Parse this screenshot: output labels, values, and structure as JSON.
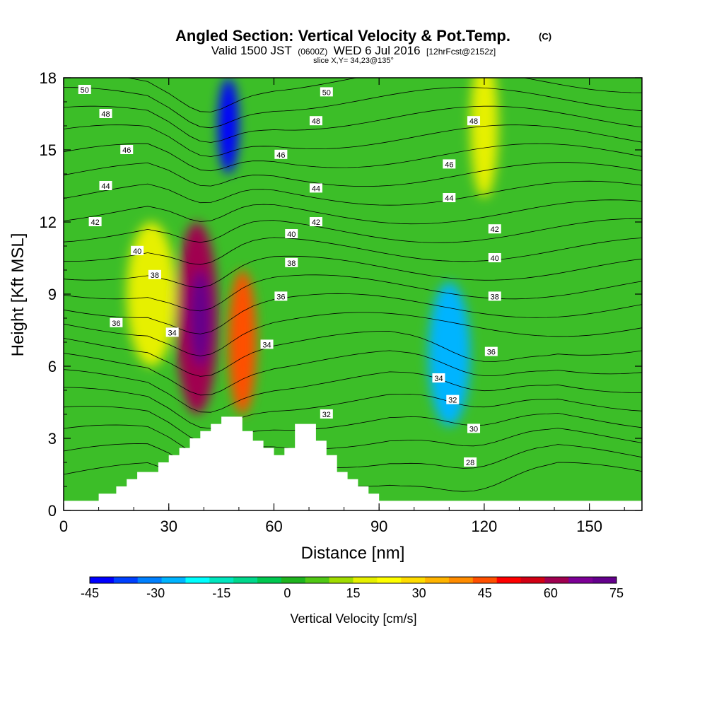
{
  "chart_data": {
    "type": "heatmap",
    "title": "Angled Section: Vertical Velocity & Pot.Temp.",
    "title_unit": "(C)",
    "subtitle": {
      "valid_a": "Valid 1500 JST",
      "zulu": "(0600Z)",
      "valid_b": "WED 6 Jul 2016",
      "fcst": "[12hrFcst@2152z]"
    },
    "slice_label": "slice X,Y= 34,23@135°",
    "xlabel": "Distance [nm]",
    "ylabel": "Height [Kft MSL]",
    "xlim": [
      0,
      165
    ],
    "ylim": [
      0,
      18
    ],
    "x_ticks": [
      "0",
      "30",
      "60",
      "90",
      "120",
      "150"
    ],
    "y_ticks": [
      "0",
      "3",
      "6",
      "9",
      "12",
      "15",
      "18"
    ],
    "colorbar": {
      "label": "Vertical Velocity [cm/s]",
      "min": -45,
      "max": 75,
      "ticks": [
        "-45",
        "-30",
        "-15",
        "0",
        "15",
        "30",
        "45",
        "60",
        "75"
      ],
      "colors": [
        "#0000ff",
        "#0040ff",
        "#0080ff",
        "#00b4ff",
        "#00ffff",
        "#00e6be",
        "#00d88c",
        "#00c850",
        "#1eb41e",
        "#50c814",
        "#a0dc00",
        "#e6f000",
        "#ffff00",
        "#ffdc00",
        "#ffb400",
        "#ff8c00",
        "#ff5000",
        "#ff0000",
        "#d20014",
        "#a00050",
        "#7d0096",
        "#64008c"
      ]
    },
    "terrain": [
      [
        0,
        0.4
      ],
      [
        10,
        0.4
      ],
      [
        10,
        0.7
      ],
      [
        15,
        0.7
      ],
      [
        15,
        1
      ],
      [
        18,
        1
      ],
      [
        18,
        1.3
      ],
      [
        21,
        1.3
      ],
      [
        21,
        1.6
      ],
      [
        27,
        1.6
      ],
      [
        27,
        2
      ],
      [
        30,
        2
      ],
      [
        30,
        2.3
      ],
      [
        33,
        2.3
      ],
      [
        33,
        2.6
      ],
      [
        36,
        2.6
      ],
      [
        36,
        3
      ],
      [
        39,
        3
      ],
      [
        39,
        3.3
      ],
      [
        42,
        3.3
      ],
      [
        42,
        3.6
      ],
      [
        45,
        3.6
      ],
      [
        45,
        3.9
      ],
      [
        51,
        3.9
      ],
      [
        51,
        3.3
      ],
      [
        54,
        3.3
      ],
      [
        54,
        2.9
      ],
      [
        57,
        2.9
      ],
      [
        57,
        2.6
      ],
      [
        60,
        2.6
      ],
      [
        60,
        2.3
      ],
      [
        63,
        2.3
      ],
      [
        63,
        2.6
      ],
      [
        66,
        2.6
      ],
      [
        66,
        3.6
      ],
      [
        72,
        3.6
      ],
      [
        72,
        2.9
      ],
      [
        75,
        2.9
      ],
      [
        75,
        2.3
      ],
      [
        78,
        2.3
      ],
      [
        78,
        1.6
      ],
      [
        81,
        1.6
      ],
      [
        81,
        1.3
      ],
      [
        84,
        1.3
      ],
      [
        84,
        1
      ],
      [
        87,
        1
      ],
      [
        87,
        0.7
      ],
      [
        90,
        0.7
      ],
      [
        90,
        0.4
      ],
      [
        165,
        0.4
      ]
    ],
    "features": [
      {
        "x": 39,
        "y": 8,
        "value": 75,
        "rx": 3,
        "ry": 2
      },
      {
        "x": 38,
        "y": 8,
        "value": 60,
        "rx": 6,
        "ry": 4
      },
      {
        "x": 51,
        "y": 7,
        "value": 45,
        "rx": 4,
        "ry": 3
      },
      {
        "x": 25,
        "y": 9,
        "value": 20,
        "rx": 7,
        "ry": 3
      },
      {
        "x": 47,
        "y": 16,
        "value": -40,
        "rx": 3,
        "ry": 2
      },
      {
        "x": 110,
        "y": 6.5,
        "value": -25,
        "rx": 6,
        "ry": 3
      },
      {
        "x": 120,
        "y": 16,
        "value": 18,
        "rx": 4,
        "ry": 3
      }
    ],
    "contour_labels": [
      {
        "text": "50",
        "x": 6,
        "y": 17.5
      },
      {
        "text": "48",
        "x": 12,
        "y": 16.5
      },
      {
        "text": "46",
        "x": 18,
        "y": 15
      },
      {
        "text": "44",
        "x": 12,
        "y": 13.5
      },
      {
        "text": "42",
        "x": 9,
        "y": 12
      },
      {
        "text": "40",
        "x": 21,
        "y": 10.8
      },
      {
        "text": "38",
        "x": 26,
        "y": 9.8
      },
      {
        "text": "36",
        "x": 15,
        "y": 7.8
      },
      {
        "text": "34",
        "x": 31,
        "y": 7.4
      },
      {
        "text": "50",
        "x": 75,
        "y": 17.4
      },
      {
        "text": "48",
        "x": 72,
        "y": 16.2
      },
      {
        "text": "46",
        "x": 62,
        "y": 14.8
      },
      {
        "text": "44",
        "x": 72,
        "y": 13.4
      },
      {
        "text": "42",
        "x": 72,
        "y": 12
      },
      {
        "text": "40",
        "x": 65,
        "y": 11.5
      },
      {
        "text": "38",
        "x": 65,
        "y": 10.3
      },
      {
        "text": "36",
        "x": 62,
        "y": 8.9
      },
      {
        "text": "34",
        "x": 58,
        "y": 6.9
      },
      {
        "text": "32",
        "x": 75,
        "y": 4
      },
      {
        "text": "48",
        "x": 117,
        "y": 16.2
      },
      {
        "text": "46",
        "x": 110,
        "y": 14.4
      },
      {
        "text": "44",
        "x": 110,
        "y": 13
      },
      {
        "text": "42",
        "x": 123,
        "y": 11.7
      },
      {
        "text": "40",
        "x": 123,
        "y": 10.5
      },
      {
        "text": "38",
        "x": 123,
        "y": 8.9
      },
      {
        "text": "36",
        "x": 122,
        "y": 6.6
      },
      {
        "text": "34",
        "x": 107,
        "y": 5.5
      },
      {
        "text": "32",
        "x": 111,
        "y": 4.6
      },
      {
        "text": "30",
        "x": 117,
        "y": 3.4
      },
      {
        "text": "28",
        "x": 116,
        "y": 2
      }
    ]
  }
}
